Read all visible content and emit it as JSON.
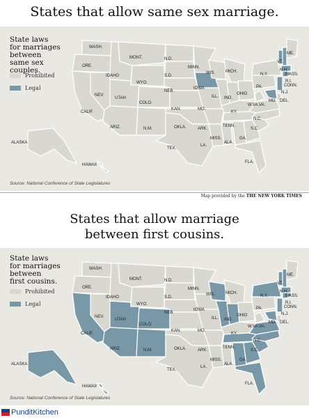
{
  "titles": {
    "top": "States that allow same sex marriage.",
    "bottom_line1": "States that allow marriage",
    "bottom_line2": "between first cousins."
  },
  "colors": {
    "prohibited": "#d8d7d0",
    "legal": "#7898a8",
    "background": "#e9e8e2"
  },
  "map1": {
    "legend_title": [
      "State laws",
      "for marriages",
      "between",
      "same sex",
      "couples."
    ],
    "legend_prohibited": "Prohibited",
    "legend_legal": "Legal",
    "source": "Source: National Conference of State Legislatures",
    "legal_states": [
      "IOWA",
      "VT.",
      "N.H.",
      "MASS.",
      "CONN.",
      "MD.",
      "N.J."
    ]
  },
  "credit": {
    "prefix": "Map provided by the",
    "name": "THE NEW YORK TIMES"
  },
  "map2": {
    "legend_title": [
      "State laws",
      "for marriages",
      "between",
      "first cousins."
    ],
    "legend_prohibited": "Prohibited",
    "legend_legal": "Legal",
    "source": "Source: National Conference of State Legislatures",
    "legal_states": [
      "CALIF.",
      "UTAH",
      "COLO.",
      "ARIZ.",
      "N.M.",
      "ALASKA",
      "HAWAII",
      "WIS.",
      "ILL.",
      "IND.",
      "TENN.",
      "ALA.",
      "GA.",
      "S.C.",
      "N.C.",
      "VA.",
      "MD.",
      "N.J.",
      "N.Y.",
      "VT.",
      "N.H.",
      "MASS.",
      "R.I.",
      "CONN.",
      "FLA."
    ]
  },
  "state_labels": [
    "WASH.",
    "MONT.",
    "N.D.",
    "MINN.",
    "ORE.",
    "IDAHO",
    "S.D.",
    "WIS.",
    "MICH.",
    "WYO.",
    "IOWA",
    "NEB.",
    "NEV.",
    "UTAH",
    "COLO.",
    "ILL.",
    "IND.",
    "OHIO",
    "PA.",
    "N.Y.",
    "CALIF.",
    "KAN.",
    "MO.",
    "KY.",
    "W.VA.",
    "VA.",
    "ARIZ.",
    "N.M.",
    "OKLA.",
    "ARK.",
    "TENN.",
    "N.C.",
    "S.C.",
    "TEX.",
    "LA.",
    "MISS.",
    "ALA.",
    "GA.",
    "FLA.",
    "ALASKA",
    "HAWAII",
    "VT.",
    "N.H.",
    "ME.",
    "MASS.",
    "R.I.",
    "CONN.",
    "N.J.",
    "DEL.",
    "MD."
  ],
  "footer": {
    "brand": "PunditKitchen"
  }
}
